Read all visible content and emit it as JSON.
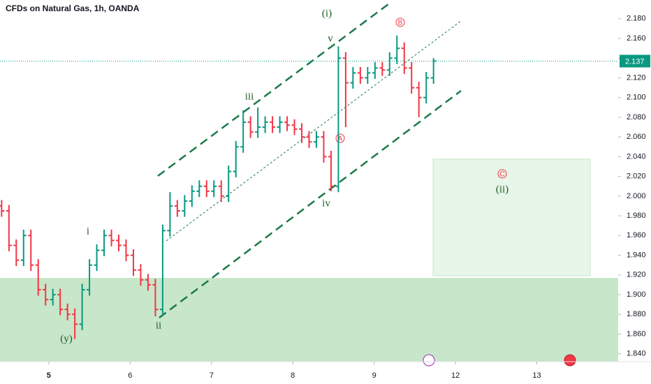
{
  "chart_data": {
    "type": "ohlc",
    "title": "CFDs on Natural Gas, 1h, OANDA",
    "up_color": "#089981",
    "down_color": "#f23645",
    "x": [
      4.42,
      4.51,
      4.6,
      4.69,
      4.78,
      4.87,
      4.96,
      5.05,
      5.14,
      5.23,
      5.32,
      5.41,
      5.5,
      5.59,
      5.68,
      5.77,
      5.86,
      5.95,
      6.04,
      6.13,
      6.22,
      6.31,
      6.4,
      6.49,
      6.58,
      6.67,
      6.76,
      6.85,
      6.94,
      7.03,
      7.12,
      7.21,
      7.3,
      7.39,
      7.48,
      7.57,
      7.66,
      7.75,
      7.84,
      7.93,
      8.02,
      8.11,
      8.2,
      8.29,
      8.38,
      8.47,
      8.56,
      8.65,
      8.74,
      8.83,
      8.92,
      9.01,
      9.1,
      9.19,
      9.28,
      9.37,
      9.46,
      9.55,
      9.64,
      9.73
    ],
    "open": [
      1.99,
      1.985,
      1.95,
      1.935,
      1.96,
      1.93,
      1.905,
      1.895,
      1.9,
      1.885,
      1.88,
      1.87,
      1.905,
      1.93,
      1.945,
      1.96,
      1.955,
      1.95,
      1.94,
      1.925,
      1.915,
      1.91,
      1.885,
      1.965,
      1.99,
      1.985,
      1.995,
      2.005,
      2.01,
      2.005,
      2.01,
      2.0,
      2.025,
      2.05,
      2.075,
      2.065,
      2.07,
      2.075,
      2.07,
      2.075,
      2.072,
      2.068,
      2.06,
      2.055,
      2.06,
      2.04,
      2.01,
      2.14,
      2.115,
      2.125,
      2.12,
      2.125,
      2.13,
      2.128,
      2.14,
      2.15,
      2.13,
      2.11,
      2.1,
      2.12
    ],
    "high": [
      1.996,
      1.991,
      1.956,
      1.966,
      1.966,
      1.936,
      1.911,
      1.906,
      1.906,
      1.891,
      1.886,
      1.911,
      1.936,
      1.951,
      1.966,
      1.966,
      1.961,
      1.956,
      1.946,
      1.931,
      1.921,
      1.916,
      1.971,
      2.004,
      1.996,
      2.001,
      2.011,
      2.016,
      2.016,
      2.016,
      2.016,
      2.031,
      2.056,
      2.087,
      2.081,
      2.09,
      2.081,
      2.081,
      2.081,
      2.081,
      2.078,
      2.074,
      2.066,
      2.066,
      2.066,
      2.046,
      2.152,
      2.146,
      2.131,
      2.131,
      2.131,
      2.136,
      2.136,
      2.146,
      2.163,
      2.156,
      2.136,
      2.116,
      2.126,
      2.14
    ],
    "low": [
      1.979,
      1.944,
      1.929,
      1.929,
      1.924,
      1.899,
      1.889,
      1.889,
      1.879,
      1.874,
      1.855,
      1.864,
      1.899,
      1.924,
      1.939,
      1.949,
      1.944,
      1.934,
      1.919,
      1.909,
      1.904,
      1.878,
      1.879,
      1.959,
      1.979,
      1.979,
      1.989,
      1.999,
      1.999,
      1.999,
      1.994,
      1.994,
      2.019,
      2.044,
      2.059,
      2.059,
      2.064,
      2.064,
      2.064,
      2.066,
      2.062,
      2.054,
      2.049,
      2.049,
      2.034,
      2.005,
      2.004,
      2.07,
      2.109,
      2.114,
      2.114,
      2.119,
      2.122,
      2.122,
      2.134,
      2.124,
      2.104,
      2.08,
      2.094,
      2.114
    ],
    "close": [
      1.985,
      1.95,
      1.935,
      1.96,
      1.93,
      1.905,
      1.895,
      1.9,
      1.885,
      1.88,
      1.87,
      1.905,
      1.93,
      1.945,
      1.96,
      1.955,
      1.95,
      1.94,
      1.925,
      1.915,
      1.91,
      1.885,
      1.965,
      1.99,
      1.985,
      1.995,
      2.005,
      2.01,
      2.005,
      2.01,
      2.0,
      2.025,
      2.05,
      2.075,
      2.065,
      2.07,
      2.075,
      2.07,
      2.075,
      2.072,
      2.068,
      2.06,
      2.055,
      2.06,
      2.04,
      2.01,
      2.14,
      2.115,
      2.125,
      2.12,
      2.125,
      2.13,
      2.128,
      2.14,
      2.15,
      2.13,
      2.11,
      2.1,
      2.12,
      2.137
    ],
    "xlim": [
      4.4,
      12
    ],
    "xticks": [
      5,
      6,
      7,
      8,
      9,
      {
        "value": 10,
        "label": "12"
      },
      {
        "value": 11,
        "label": "13"
      }
    ],
    "ylim": [
      1.832,
      2.199
    ],
    "yticks": [
      {
        "value": 1.84,
        "label": "1.840"
      },
      {
        "value": 1.86,
        "label": "1.860"
      },
      {
        "value": 1.88,
        "label": "1.880"
      },
      {
        "value": 1.9,
        "label": "1.900"
      },
      {
        "value": 1.92,
        "label": "1.920"
      },
      {
        "value": 1.94,
        "label": "1.940"
      },
      {
        "value": 1.96,
        "label": "1.960"
      },
      {
        "value": 1.98,
        "label": "1.980"
      },
      {
        "value": 2.0,
        "label": "2.000"
      },
      {
        "value": 2.02,
        "label": "2.020"
      },
      {
        "value": 2.04,
        "label": "2.040"
      },
      {
        "value": 2.06,
        "label": "2.060"
      },
      {
        "value": 2.08,
        "label": "2.080"
      },
      {
        "value": 2.1,
        "label": "2.100"
      },
      {
        "value": 2.12,
        "label": "2.120"
      },
      {
        "value": 2.14,
        "label": "2.140"
      },
      {
        "value": 2.16,
        "label": "2.160"
      },
      {
        "value": 2.18,
        "label": "2.180"
      }
    ],
    "annotations": [
      "(i)",
      "v",
      "iii",
      "iv",
      "ii",
      "i",
      "(y)",
      "A",
      "B",
      "C",
      "(ii)"
    ]
  }
}
